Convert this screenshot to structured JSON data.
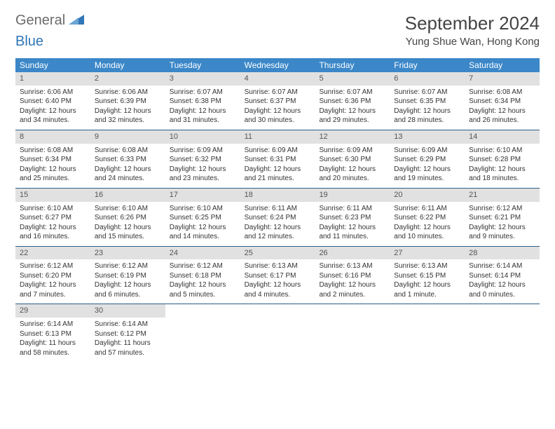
{
  "brand": {
    "part1": "General",
    "part2": "Blue"
  },
  "title": "September 2024",
  "location": "Yung Shue Wan, Hong Kong",
  "colors": {
    "header_bg": "#3b87c8",
    "daynum_bg": "#e1e1e1",
    "week_border": "#2a5f8a",
    "logo_gray": "#6b6b6b",
    "logo_blue": "#2f77b6"
  },
  "typography": {
    "title_fontsize": 26,
    "location_fontsize": 15,
    "dow_fontsize": 12,
    "cell_fontsize": 10
  },
  "layout": {
    "columns": 7,
    "rows": 5,
    "first_weekday_offset": 0
  },
  "dow": [
    "Sunday",
    "Monday",
    "Tuesday",
    "Wednesday",
    "Thursday",
    "Friday",
    "Saturday"
  ],
  "days": [
    {
      "n": 1,
      "sunrise": "6:06 AM",
      "sunset": "6:40 PM",
      "daylight": "12 hours and 34 minutes."
    },
    {
      "n": 2,
      "sunrise": "6:06 AM",
      "sunset": "6:39 PM",
      "daylight": "12 hours and 32 minutes."
    },
    {
      "n": 3,
      "sunrise": "6:07 AM",
      "sunset": "6:38 PM",
      "daylight": "12 hours and 31 minutes."
    },
    {
      "n": 4,
      "sunrise": "6:07 AM",
      "sunset": "6:37 PM",
      "daylight": "12 hours and 30 minutes."
    },
    {
      "n": 5,
      "sunrise": "6:07 AM",
      "sunset": "6:36 PM",
      "daylight": "12 hours and 29 minutes."
    },
    {
      "n": 6,
      "sunrise": "6:07 AM",
      "sunset": "6:35 PM",
      "daylight": "12 hours and 28 minutes."
    },
    {
      "n": 7,
      "sunrise": "6:08 AM",
      "sunset": "6:34 PM",
      "daylight": "12 hours and 26 minutes."
    },
    {
      "n": 8,
      "sunrise": "6:08 AM",
      "sunset": "6:34 PM",
      "daylight": "12 hours and 25 minutes."
    },
    {
      "n": 9,
      "sunrise": "6:08 AM",
      "sunset": "6:33 PM",
      "daylight": "12 hours and 24 minutes."
    },
    {
      "n": 10,
      "sunrise": "6:09 AM",
      "sunset": "6:32 PM",
      "daylight": "12 hours and 23 minutes."
    },
    {
      "n": 11,
      "sunrise": "6:09 AM",
      "sunset": "6:31 PM",
      "daylight": "12 hours and 21 minutes."
    },
    {
      "n": 12,
      "sunrise": "6:09 AM",
      "sunset": "6:30 PM",
      "daylight": "12 hours and 20 minutes."
    },
    {
      "n": 13,
      "sunrise": "6:09 AM",
      "sunset": "6:29 PM",
      "daylight": "12 hours and 19 minutes."
    },
    {
      "n": 14,
      "sunrise": "6:10 AM",
      "sunset": "6:28 PM",
      "daylight": "12 hours and 18 minutes."
    },
    {
      "n": 15,
      "sunrise": "6:10 AM",
      "sunset": "6:27 PM",
      "daylight": "12 hours and 16 minutes."
    },
    {
      "n": 16,
      "sunrise": "6:10 AM",
      "sunset": "6:26 PM",
      "daylight": "12 hours and 15 minutes."
    },
    {
      "n": 17,
      "sunrise": "6:10 AM",
      "sunset": "6:25 PM",
      "daylight": "12 hours and 14 minutes."
    },
    {
      "n": 18,
      "sunrise": "6:11 AM",
      "sunset": "6:24 PM",
      "daylight": "12 hours and 12 minutes."
    },
    {
      "n": 19,
      "sunrise": "6:11 AM",
      "sunset": "6:23 PM",
      "daylight": "12 hours and 11 minutes."
    },
    {
      "n": 20,
      "sunrise": "6:11 AM",
      "sunset": "6:22 PM",
      "daylight": "12 hours and 10 minutes."
    },
    {
      "n": 21,
      "sunrise": "6:12 AM",
      "sunset": "6:21 PM",
      "daylight": "12 hours and 9 minutes."
    },
    {
      "n": 22,
      "sunrise": "6:12 AM",
      "sunset": "6:20 PM",
      "daylight": "12 hours and 7 minutes."
    },
    {
      "n": 23,
      "sunrise": "6:12 AM",
      "sunset": "6:19 PM",
      "daylight": "12 hours and 6 minutes."
    },
    {
      "n": 24,
      "sunrise": "6:12 AM",
      "sunset": "6:18 PM",
      "daylight": "12 hours and 5 minutes."
    },
    {
      "n": 25,
      "sunrise": "6:13 AM",
      "sunset": "6:17 PM",
      "daylight": "12 hours and 4 minutes."
    },
    {
      "n": 26,
      "sunrise": "6:13 AM",
      "sunset": "6:16 PM",
      "daylight": "12 hours and 2 minutes."
    },
    {
      "n": 27,
      "sunrise": "6:13 AM",
      "sunset": "6:15 PM",
      "daylight": "12 hours and 1 minute."
    },
    {
      "n": 28,
      "sunrise": "6:14 AM",
      "sunset": "6:14 PM",
      "daylight": "12 hours and 0 minutes."
    },
    {
      "n": 29,
      "sunrise": "6:14 AM",
      "sunset": "6:13 PM",
      "daylight": "11 hours and 58 minutes."
    },
    {
      "n": 30,
      "sunrise": "6:14 AM",
      "sunset": "6:12 PM",
      "daylight": "11 hours and 57 minutes."
    }
  ],
  "labels": {
    "sunrise": "Sunrise:",
    "sunset": "Sunset:",
    "daylight": "Daylight:"
  }
}
